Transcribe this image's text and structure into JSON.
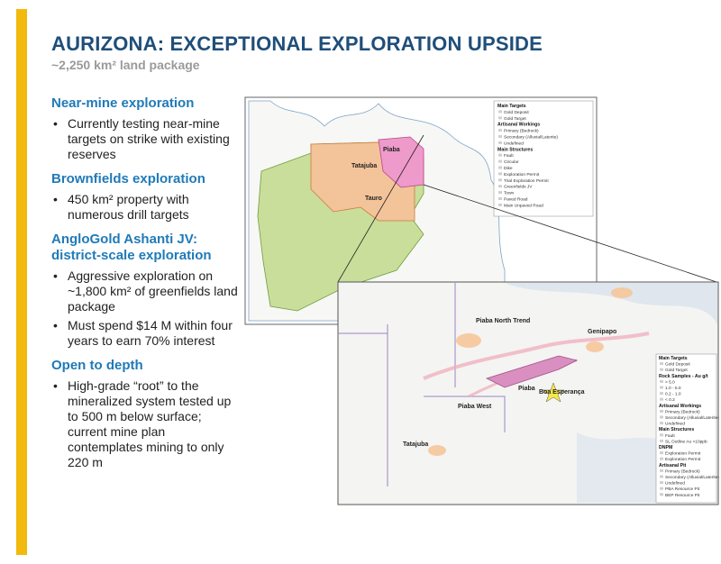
{
  "header": {
    "title": "AURIZONA: EXCEPTIONAL EXPLORATION UPSIDE",
    "subtitle": "~2,250 km² land package"
  },
  "sections": [
    {
      "heading": "Near-mine exploration",
      "bullets": [
        "Currently testing near-mine targets on strike with existing reserves"
      ]
    },
    {
      "heading": "Brownfields exploration",
      "bullets": [
        "450 km² property with numerous drill targets"
      ]
    },
    {
      "heading": "AngloGold Ashanti JV: district-scale exploration",
      "bullets": [
        "Aggressive exploration on ~1,800 km² of greenfields land package",
        "Must spend $14 M within four years to earn 70% interest"
      ]
    },
    {
      "heading": "Open to depth",
      "bullets": [
        "High-grade “root” to the mineralized system tested up to 500 m below surface; current mine plan contemplates mining to only 220 m"
      ]
    }
  ],
  "maps": [
    {
      "labels": [
        "Piaba",
        "Tatajuba",
        "Tauro"
      ],
      "legend": [
        {
          "heading": "Main Targets",
          "items": [
            "Gold Deposit",
            "Gold Target"
          ]
        },
        {
          "heading": "Artisanal Workings",
          "items": [
            "Primary (Bedrock)",
            "Secondary (Alluvial/Laterite)",
            "Undefined"
          ]
        },
        {
          "heading": "Main Structures",
          "items": [
            "Fault",
            "Circular",
            "Dike"
          ]
        },
        {
          "items": [
            "Exploration Permit",
            "Trial Exploration Permit",
            "Greenfields JV",
            "Town",
            "Paved Road",
            "Main Unpaved Road"
          ]
        }
      ]
    },
    {
      "labels": [
        "Piaba North Trend",
        "Piaba",
        "Boa Esperança",
        "Piaba West",
        "Tatajuba",
        "Genipapo"
      ],
      "legend": [
        {
          "heading": "Main Targets",
          "items": [
            "Gold Deposit",
            "Gold Target"
          ]
        },
        {
          "heading": "Rock Samples - Au g/t",
          "items": [
            "> 5.0",
            "1.0 - 5.0",
            "0.2 - 1.0",
            "< 0.2"
          ]
        },
        {
          "heading": "Artisanal Workings",
          "items": [
            "Primary (Bedrock)",
            "Secondary (Alluvial/Laterite)",
            "Undefined"
          ]
        },
        {
          "heading": "Main Structures",
          "items": [
            "Fault",
            "SL Outline Au >10ppb"
          ]
        },
        {
          "heading": "DNPM",
          "items": [
            "Exploration Permit",
            "Exploration Permit"
          ]
        },
        {
          "heading": "Artisanal Pit",
          "items": [
            "Primary (Bedrock)",
            "Secondary (Alluvial/Laterite)",
            "Undefined",
            "PBA Resource Pit",
            "BEP Resource Pit"
          ]
        }
      ]
    }
  ]
}
